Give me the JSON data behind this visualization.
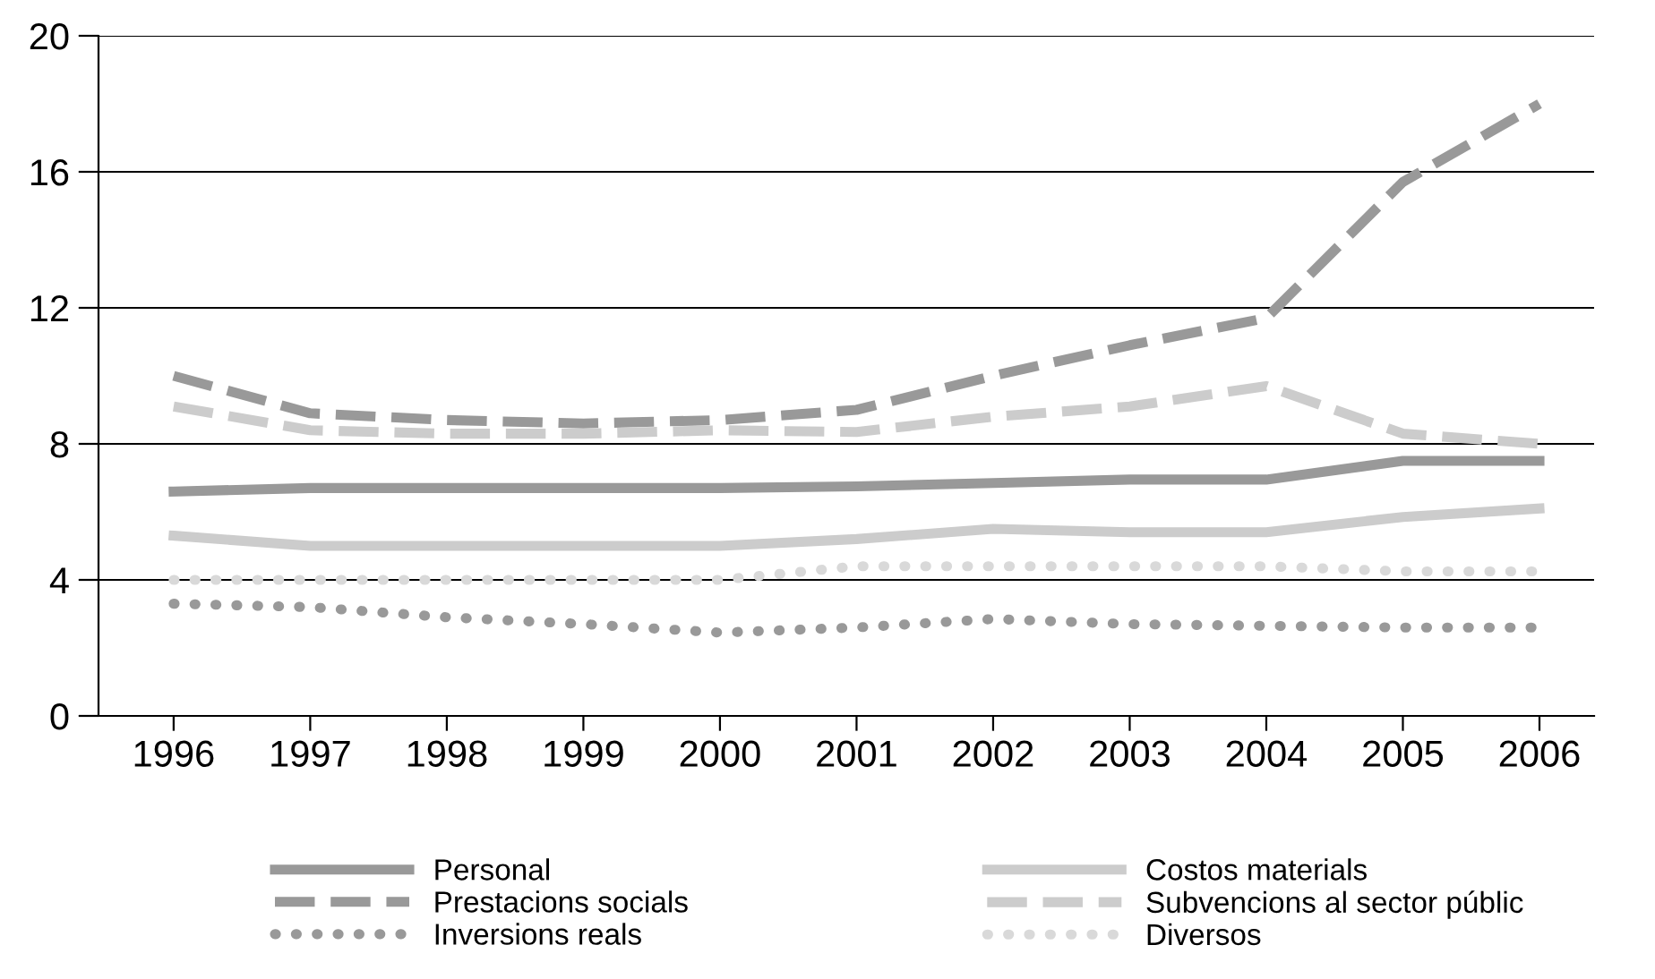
{
  "chart_data": {
    "type": "line",
    "categories": [
      "1996",
      "1997",
      "1998",
      "1999",
      "2000",
      "2001",
      "2002",
      "2003",
      "2004",
      "2005",
      "2006"
    ],
    "series": [
      {
        "name": "Personal",
        "color": "#999999",
        "line_style": "solid",
        "values": [
          6.6,
          6.7,
          6.7,
          6.7,
          6.7,
          6.75,
          6.85,
          6.95,
          6.95,
          7.5,
          7.5
        ]
      },
      {
        "name": "Prestacions socials",
        "color": "#999999",
        "line_style": "dashed",
        "values": [
          10.0,
          8.9,
          8.7,
          8.6,
          8.7,
          9.0,
          10.0,
          10.9,
          11.7,
          15.7,
          18.0
        ]
      },
      {
        "name": "Inversions reals",
        "color": "#999999",
        "line_style": "dotted",
        "values": [
          3.3,
          3.2,
          2.9,
          2.7,
          2.45,
          2.6,
          2.85,
          2.7,
          2.65,
          2.6,
          2.6
        ]
      },
      {
        "name": "Costos materials",
        "color": "#cccccc",
        "line_style": "solid",
        "values": [
          5.3,
          5.0,
          5.0,
          5.0,
          5.0,
          5.2,
          5.5,
          5.4,
          5.4,
          5.85,
          6.1
        ]
      },
      {
        "name": "Subvencions al sector públic",
        "color": "#cccccc",
        "line_style": "dashed",
        "values": [
          9.1,
          8.4,
          8.3,
          8.3,
          8.4,
          8.35,
          8.8,
          9.1,
          9.7,
          8.3,
          8.0
        ]
      },
      {
        "name": "Diversos",
        "color": "#d9d9d9",
        "line_style": "dotted",
        "values": [
          4.0,
          4.0,
          4.0,
          4.0,
          4.0,
          4.4,
          4.4,
          4.4,
          4.4,
          4.25,
          4.25
        ]
      }
    ],
    "ylim": [
      0,
      20
    ],
    "yticks": [
      0,
      4,
      8,
      12,
      16,
      20
    ],
    "grid": "y",
    "legend": "bottom",
    "marker": "none"
  }
}
